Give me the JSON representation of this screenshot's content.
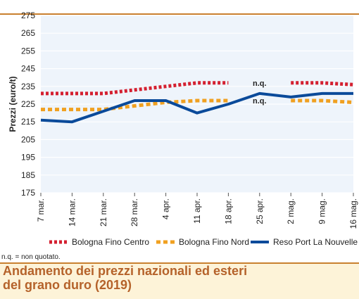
{
  "chart_data": {
    "type": "line",
    "ylabel": "Prezzi (euro/t)",
    "ylim": [
      175,
      275
    ],
    "yticks": [
      175,
      185,
      195,
      205,
      215,
      225,
      235,
      245,
      255,
      265,
      275
    ],
    "categories": [
      "7 mar.",
      "14 mar.",
      "21 mar.",
      "28 mar.",
      "4 apr.",
      "11 apr.",
      "18 apr.",
      "25 apr.",
      "2 mag.",
      "9 mag.",
      "16 mag."
    ],
    "grid": true,
    "legend_position": "bottom",
    "series": [
      {
        "name": "Bologna Fino Centro",
        "color": "#d42030",
        "style": "dotted",
        "values": [
          231,
          231,
          231,
          233,
          235,
          237,
          237,
          null,
          237,
          237,
          236
        ]
      },
      {
        "name": "Bologna Fino Nord",
        "color": "#f0a020",
        "style": "dashed",
        "values": [
          222,
          222,
          222,
          224,
          226,
          227,
          227,
          null,
          227,
          227,
          226
        ]
      },
      {
        "name": "Reso Port La Nouvelle",
        "color": "#0a4a9a",
        "style": "solid",
        "values": [
          216,
          215,
          221,
          227,
          227,
          220,
          225,
          231,
          229,
          231,
          231
        ]
      }
    ],
    "annotations": [
      {
        "text": "n.q.",
        "category": "25 apr.",
        "series": "Bologna Fino Centro"
      },
      {
        "text": "n.q.",
        "category": "25 apr.",
        "series": "Bologna Fino Nord"
      }
    ]
  },
  "footnote": "n.q. = non quotato.",
  "caption": {
    "line1": "Andamento dei prezzi nazionali ed esteri",
    "line2": "del grano duro (2019)"
  }
}
